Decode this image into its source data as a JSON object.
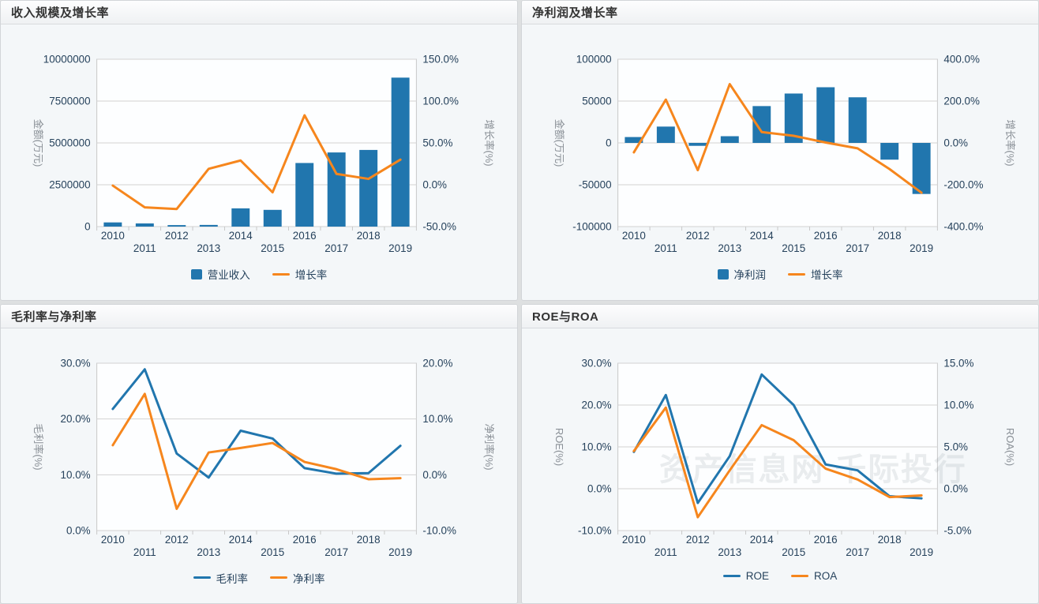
{
  "watermark": {
    "text": "资产信息网 千际投行"
  },
  "palette": {
    "bar_blue": "#2176ae",
    "line_orange": "#f6861d",
    "tick_text": "#26425c",
    "grid_line": "#d2d2d2",
    "plot_border": "#c8c8c8",
    "plot_background": "#fdfeff"
  },
  "chart_data": [
    {
      "id": "revenue-growth",
      "type": "bar",
      "title": "收入规模及增长率",
      "categories": [
        "2010",
        "2011",
        "2012",
        "2013",
        "2014",
        "2015",
        "2016",
        "2017",
        "2018",
        "2019"
      ],
      "left_axis": {
        "title": "金额(万元)",
        "min": 0,
        "max": 10000000,
        "tick_values": [
          0,
          2500000,
          5000000,
          7500000,
          10000000
        ],
        "tick_labels": [
          "0",
          "2500000",
          "5000000",
          "7500000",
          "10000000"
        ]
      },
      "right_axis": {
        "title": "增长率(%)",
        "min": -50,
        "max": 150,
        "tick_values": [
          -50,
          0,
          50,
          100,
          150
        ],
        "tick_labels": [
          "-50.0%",
          "0.0%",
          "50.0%",
          "100.0%",
          "150.0%"
        ]
      },
      "series": [
        {
          "name": "营业收入",
          "type": "bar",
          "axis": "left",
          "color": "#2176ae",
          "values": [
            250000,
            190000,
            90000,
            100000,
            1090000,
            1000000,
            3800000,
            4430000,
            4580000,
            8900000
          ]
        },
        {
          "name": "增长率",
          "type": "line",
          "axis": "right",
          "color": "#f6861d",
          "values": [
            -1,
            -27,
            -29,
            19,
            29,
            -9,
            83,
            13,
            7,
            30
          ]
        }
      ]
    },
    {
      "id": "netprofit-growth",
      "type": "bar",
      "title": "净利润及增长率",
      "categories": [
        "2010",
        "2011",
        "2012",
        "2013",
        "2014",
        "2015",
        "2016",
        "2017",
        "2018",
        "2019"
      ],
      "left_axis": {
        "title": "金额(万元)",
        "min": -100000,
        "max": 100000,
        "tick_values": [
          -100000,
          -50000,
          0,
          50000,
          100000
        ],
        "tick_labels": [
          "-100000",
          "-50000",
          "0",
          "50000",
          "100000"
        ]
      },
      "right_axis": {
        "title": "增长率(%)",
        "min": -400,
        "max": 400,
        "tick_values": [
          -400,
          -200,
          0,
          200,
          400
        ],
        "tick_labels": [
          "-400.0%",
          "-200.0%",
          "0.0%",
          "200.0%",
          "400.0%"
        ]
      },
      "series": [
        {
          "name": "净利润",
          "type": "bar",
          "axis": "left",
          "color": "#2176ae",
          "values": [
            7000,
            19500,
            -3500,
            8000,
            44000,
            59000,
            66500,
            54500,
            -20000,
            -61000
          ]
        },
        {
          "name": "增长率",
          "type": "line",
          "axis": "right",
          "color": "#f6861d",
          "values": [
            -45,
            207,
            -130,
            281,
            52,
            34,
            2,
            -26,
            -125,
            -238
          ]
        }
      ]
    },
    {
      "id": "gross-net-margin",
      "type": "line",
      "title": "毛利率与净利率",
      "categories": [
        "2010",
        "2011",
        "2012",
        "2013",
        "2014",
        "2015",
        "2016",
        "2017",
        "2018",
        "2019"
      ],
      "left_axis": {
        "title": "毛利率(%)",
        "min": 0,
        "max": 30,
        "tick_values": [
          0,
          10,
          20,
          30
        ],
        "tick_labels": [
          "0.0%",
          "10.0%",
          "20.0%",
          "30.0%"
        ]
      },
      "right_axis": {
        "title": "净利率(%)",
        "min": -10,
        "max": 20,
        "tick_values": [
          -10,
          0,
          10,
          20
        ],
        "tick_labels": [
          "-10.0%",
          "0.0%",
          "10.0%",
          "20.0%"
        ]
      },
      "series": [
        {
          "name": "毛利率",
          "type": "line",
          "axis": "left",
          "color": "#2176ae",
          "values": [
            21.8,
            28.9,
            13.8,
            9.5,
            17.9,
            16.5,
            11.2,
            10.2,
            10.3,
            15.2
          ]
        },
        {
          "name": "净利率",
          "type": "line",
          "axis": "right",
          "color": "#f6861d",
          "values": [
            5.3,
            14.5,
            -6.1,
            4.0,
            4.8,
            5.7,
            2.3,
            1.0,
            -0.8,
            -0.6
          ]
        }
      ]
    },
    {
      "id": "roe-roa",
      "type": "line",
      "title": "ROE与ROA",
      "watermark": true,
      "categories": [
        "2010",
        "2011",
        "2012",
        "2013",
        "2014",
        "2015",
        "2016",
        "2017",
        "2018",
        "2019"
      ],
      "left_axis": {
        "title": "ROE(%)",
        "min": -10,
        "max": 30,
        "tick_values": [
          -10,
          0,
          10,
          20,
          30
        ],
        "tick_labels": [
          "-10.0%",
          "0.0%",
          "10.0%",
          "20.0%",
          "30.0%"
        ]
      },
      "right_axis": {
        "title": "ROA(%)",
        "min": -5,
        "max": 15,
        "tick_values": [
          -5,
          0,
          5,
          10,
          15
        ],
        "tick_labels": [
          "-5.0%",
          "0.0%",
          "5.0%",
          "10.0%",
          "15.0%"
        ]
      },
      "series": [
        {
          "name": "ROE",
          "type": "line",
          "axis": "left",
          "color": "#2176ae",
          "values": [
            8.8,
            22.4,
            -3.4,
            7.8,
            27.3,
            20.0,
            5.8,
            4.4,
            -1.8,
            -2.3
          ]
        },
        {
          "name": "ROA",
          "type": "line",
          "axis": "right",
          "color": "#f6861d",
          "values": [
            4.5,
            9.7,
            -3.4,
            2.2,
            7.6,
            5.8,
            2.4,
            1.1,
            -1.0,
            -0.8
          ]
        }
      ]
    }
  ]
}
